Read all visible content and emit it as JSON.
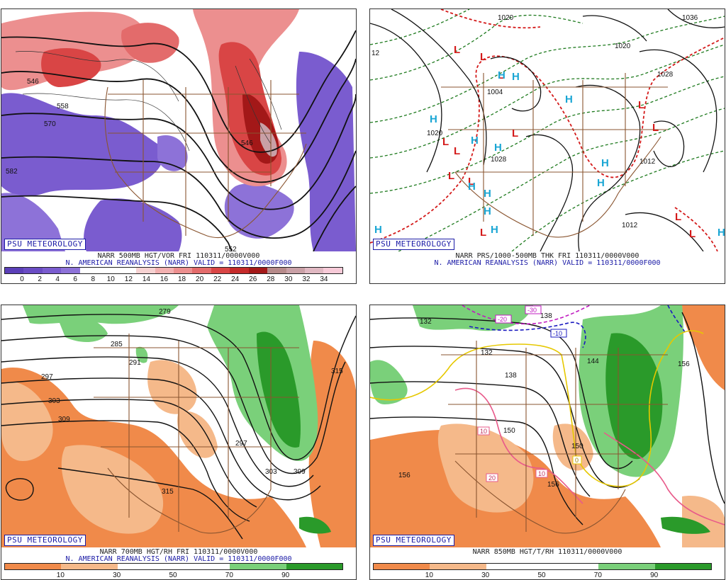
{
  "badge": "PSU METEOROLOGY",
  "panels": [
    {
      "title": "NARR 500MB HGT/VOR FRI 110311/0000V000",
      "subtitle": "N. AMERICAN REANALYSIS (NARR) VALID = 110311/0000F000",
      "contour_labels": [
        "546",
        "558",
        "570",
        "582",
        "546",
        "552"
      ],
      "colorbar_ticks": [
        "0",
        "2",
        "4",
        "6",
        "8",
        "10",
        "12",
        "14",
        "16",
        "18",
        "20",
        "22",
        "24",
        "26",
        "28",
        "30",
        "32",
        "34"
      ],
      "colorbar_colors": [
        "#5b3fb8",
        "#6a4cc4",
        "#7a5ccf",
        "#8d72d8",
        "#ffffff",
        "#ffffff",
        "#ffffff",
        "#f6d2d2",
        "#f2b0b0",
        "#ec8f8f",
        "#e36b6b",
        "#d94545",
        "#c52a2a",
        "#a31818",
        "#b68a8a",
        "#c9a0a6",
        "#e0b8c2",
        "#f7cad8"
      ]
    },
    {
      "title": "NARR PRS/1000-500MB THK FRI 110311/0000V000",
      "subtitle": "N. AMERICAN REANALYSIS (NARR) VALID = 110311/0000F000",
      "contour_labels": [
        "1020",
        "1004",
        "1012",
        "1020",
        "1028",
        "1028",
        "1012",
        "1020",
        "1028",
        "1036",
        "12"
      ],
      "highs": 14,
      "lows": 13
    },
    {
      "title": "NARR 700MB HGT/RH FRI 110311/0000V000",
      "subtitle": "N. AMERICAN REANALYSIS (NARR) VALID = 110311/0000F000",
      "contour_labels": [
        "279",
        "285",
        "291",
        "297",
        "303",
        "309",
        "315",
        "297",
        "303",
        "309",
        "315"
      ],
      "colorbar_ticks": [
        "10",
        "30",
        "50",
        "70",
        "90"
      ],
      "colorbar_colors": [
        "#f08a4a",
        "#f5b98a",
        "#ffffff",
        "#ffffff",
        "#7ad07a",
        "#2a9a2a"
      ]
    },
    {
      "title": "NARR 850MB HGT/T/RH 110311/0000V000",
      "subtitle": "",
      "contour_labels": [
        "132",
        "138",
        "132",
        "138",
        "144",
        "150",
        "156",
        "156",
        "150",
        "156"
      ],
      "temp_labels": [
        "-30",
        "-20",
        "-10",
        "10",
        "10",
        "20",
        "0"
      ],
      "colorbar_ticks": [
        "10",
        "30",
        "50",
        "70",
        "90"
      ],
      "colorbar_colors": [
        "#f08a4a",
        "#f5b98a",
        "#ffffff",
        "#ffffff",
        "#7ad07a",
        "#2a9a2a"
      ]
    }
  ]
}
